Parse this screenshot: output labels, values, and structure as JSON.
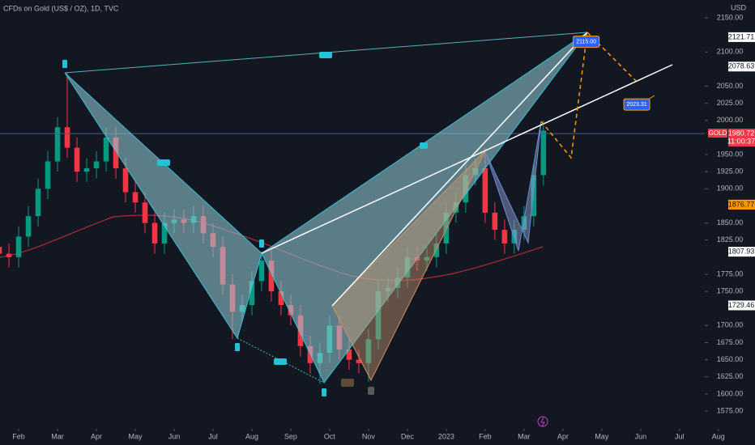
{
  "chart_data": {
    "type": "candlestick",
    "title": "CFDs on Gold (US$ / OZ), 1D, TVC",
    "y_axis_label": "USD",
    "xlim": [
      -0.48,
      17.65
    ],
    "xticks": [
      {
        "value": 0,
        "label": "Feb"
      },
      {
        "value": 1,
        "label": "Mar"
      },
      {
        "value": 2,
        "label": "Apr"
      },
      {
        "value": 3,
        "label": "May"
      },
      {
        "value": 4,
        "label": "Jun"
      },
      {
        "value": 5,
        "label": "Jul"
      },
      {
        "value": 6,
        "label": "Aug"
      },
      {
        "value": 7,
        "label": "Sep"
      },
      {
        "value": 8,
        "label": "Oct"
      },
      {
        "value": 9,
        "label": "Nov"
      },
      {
        "value": 10,
        "label": "Dec"
      },
      {
        "value": 11,
        "label": "2023"
      },
      {
        "value": 12,
        "label": "Feb"
      },
      {
        "value": 13,
        "label": "Mar"
      },
      {
        "value": 14,
        "label": "Apr"
      },
      {
        "value": 15,
        "label": "May"
      },
      {
        "value": 16,
        "label": "Jun"
      },
      {
        "value": 17,
        "label": "Jul"
      },
      {
        "value": 18,
        "label": "Aug"
      }
    ],
    "ylim": [
      1549,
      2176
    ],
    "yticks": [
      {
        "value": 1575,
        "label": "1575.00"
      },
      {
        "value": 1600,
        "label": "1600.00"
      },
      {
        "value": 1625,
        "label": "1625.00"
      },
      {
        "value": 1650,
        "label": "1650.00"
      },
      {
        "value": 1675,
        "label": "1675.00"
      },
      {
        "value": 1700,
        "label": "1700.00"
      },
      {
        "value": 1750,
        "label": "1750.00"
      },
      {
        "value": 1775,
        "label": "1775.00"
      },
      {
        "value": 1825,
        "label": "1825.00"
      },
      {
        "value": 1850,
        "label": "1850.00"
      },
      {
        "value": 1900,
        "label": "1900.00"
      },
      {
        "value": 1925,
        "label": "1925.00"
      },
      {
        "value": 1950,
        "label": "1950.00"
      },
      {
        "value": 2000,
        "label": "2000.00"
      },
      {
        "value": 2025,
        "label": "2025.00"
      },
      {
        "value": 2050,
        "label": "2050.00"
      },
      {
        "value": 2100,
        "label": "2100.00"
      },
      {
        "value": 2150,
        "label": "2150.00"
      }
    ],
    "up_color": "#089981",
    "down_color": "#f23645",
    "x": [
      -0.5,
      -0.25,
      0,
      0.25,
      0.5,
      0.75,
      1,
      1.25,
      1.5,
      1.75,
      2,
      2.25,
      2.5,
      2.75,
      3,
      3.25,
      3.5,
      3.75,
      4,
      4.25,
      4.5,
      4.75,
      5,
      5.25,
      5.5,
      5.75,
      6,
      6.25,
      6.5,
      6.75,
      7,
      7.25,
      7.5,
      7.75,
      8,
      8.25,
      8.5,
      8.75,
      9,
      9.25,
      9.5,
      9.75,
      10,
      10.25,
      10.5,
      10.75,
      11,
      11.25,
      11.5,
      11.75,
      12,
      12.25,
      12.5,
      12.75,
      13,
      13.25,
      13.5
    ],
    "open": [
      1815,
      1805,
      1800,
      1830,
      1860,
      1900,
      1940,
      1990,
      1960,
      1925,
      1930,
      1940,
      1975,
      1930,
      1895,
      1880,
      1850,
      1820,
      1850,
      1855,
      1850,
      1860,
      1835,
      1815,
      1760,
      1720,
      1730,
      1765,
      1795,
      1750,
      1730,
      1715,
      1670,
      1645,
      1660,
      1700,
      1665,
      1650,
      1645,
      1680,
      1750,
      1755,
      1770,
      1800,
      1795,
      1800,
      1820,
      1865,
      1880,
      1920,
      1930,
      1865,
      1840,
      1820,
      1840,
      1860,
      1920
    ],
    "high": [
      1830,
      1820,
      1845,
      1875,
      1915,
      1955,
      2005,
      2070,
      1975,
      1945,
      1955,
      1990,
      1990,
      1945,
      1910,
      1895,
      1865,
      1865,
      1870,
      1870,
      1875,
      1875,
      1850,
      1830,
      1775,
      1745,
      1780,
      1808,
      1810,
      1765,
      1745,
      1730,
      1685,
      1675,
      1715,
      1715,
      1680,
      1665,
      1695,
      1765,
      1770,
      1785,
      1815,
      1815,
      1815,
      1835,
      1880,
      1895,
      1935,
      1945,
      1960,
      1880,
      1855,
      1855,
      1875,
      1935,
      2000
    ],
    "low": [
      1790,
      1785,
      1785,
      1815,
      1845,
      1885,
      1925,
      1945,
      1910,
      1910,
      1915,
      1925,
      1915,
      1880,
      1865,
      1835,
      1805,
      1805,
      1835,
      1835,
      1835,
      1820,
      1800,
      1745,
      1680,
      1705,
      1715,
      1750,
      1735,
      1715,
      1700,
      1655,
      1630,
      1615,
      1645,
      1650,
      1635,
      1630,
      1618,
      1665,
      1735,
      1740,
      1755,
      1780,
      1780,
      1785,
      1805,
      1850,
      1865,
      1905,
      1850,
      1825,
      1805,
      1805,
      1825,
      1845,
      1905
    ],
    "close": [
      1805,
      1800,
      1830,
      1860,
      1900,
      1940,
      1990,
      1960,
      1925,
      1930,
      1940,
      1975,
      1930,
      1895,
      1880,
      1850,
      1820,
      1850,
      1855,
      1850,
      1860,
      1835,
      1815,
      1760,
      1720,
      1730,
      1765,
      1795,
      1750,
      1730,
      1715,
      1670,
      1645,
      1660,
      1700,
      1665,
      1650,
      1645,
      1680,
      1750,
      1755,
      1770,
      1800,
      1795,
      1800,
      1820,
      1865,
      1880,
      1920,
      1930,
      1865,
      1840,
      1820,
      1840,
      1860,
      1920,
      1985
    ],
    "price_tags": [
      {
        "value": 2121.71,
        "label": "2121.71"
      },
      {
        "value": 2078.63,
        "label": "2078.63"
      },
      {
        "value": 1876.8,
        "label": "1876.80",
        "color": "#ff9800"
      },
      {
        "value": 1876.77,
        "label": "1876.77",
        "color": "#ff9800"
      },
      {
        "value": 1807.93,
        "label": "1807.93"
      },
      {
        "value": 1729.46,
        "label": "1729.46"
      }
    ],
    "last_price": {
      "symbol": "GOLD",
      "value": 1980.72,
      "countdown": "11:00:37",
      "color": "#f23645"
    },
    "targets": [
      {
        "value": 2115,
        "label": "2115.00",
        "x": 14.6
      },
      {
        "value": 2023.31,
        "label": "2023.31",
        "x": 15.9
      }
    ]
  }
}
